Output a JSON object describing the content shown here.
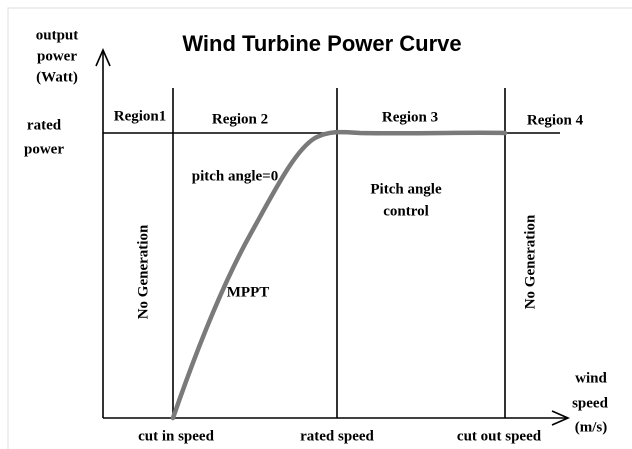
{
  "title": "Wind Turbine Power Curve",
  "y_axis_label": [
    "output",
    "power",
    "(Watt)"
  ],
  "rated_power_label": [
    "rated",
    "power"
  ],
  "regions": [
    "Region1",
    "Region 2",
    "Region 3",
    "Region 4"
  ],
  "annotations": {
    "pitch_zero": "pitch angle=0",
    "pitch_control": [
      "Pitch angle",
      "control"
    ],
    "mppt": "MPPT",
    "no_generation_left": "No Generation",
    "no_generation_right": "No Generation"
  },
  "x_axis_label": [
    "wind",
    "speed",
    "(m/s)"
  ],
  "x_labels": [
    "cut in speed",
    "rated speed",
    "cut out speed"
  ]
}
